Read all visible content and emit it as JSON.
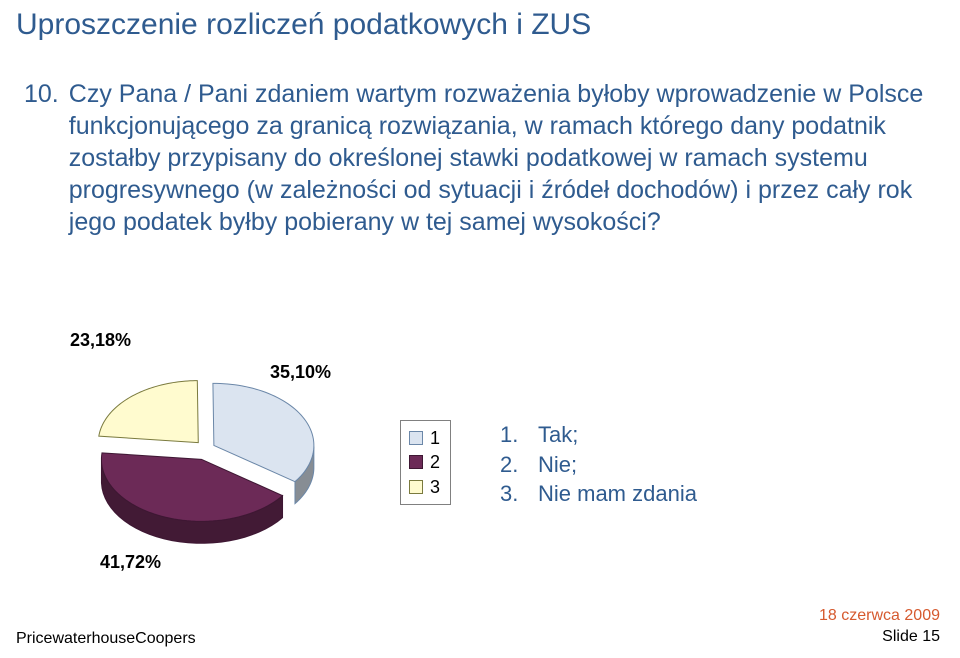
{
  "title": {
    "text": "Uproszczenie rozliczeń podatkowych i ZUS",
    "color": "#2f5b8f",
    "fontsize": 30
  },
  "question": {
    "number": "10.",
    "text": "Czy Pana / Pani zdaniem wartym rozważenia byłoby wprowadzenie w Polsce funkcjonującego za granicą rozwiązania, w ramach którego dany podatnik zostałby przypisany do określonej stawki podatkowej w ramach systemu progresywnego (w zależności od sytuacji i źródeł dochodów) i przez cały rok jego podatek byłby pobierany w tej samej wysokości?",
    "color": "#2f5b8f",
    "fontsize": 25
  },
  "chart": {
    "type": "pie-3d",
    "background_color": "#ffffff",
    "slices": [
      {
        "label": "23,18%",
        "value": 23.18,
        "color": "#fffbcf",
        "border": "#7a7a3e"
      },
      {
        "label": "35,10%",
        "value": 35.1,
        "color": "#dbe4f0",
        "border": "#6b87a8"
      },
      {
        "label": "41,72%",
        "value": 41.72,
        "color": "#6c2a57",
        "border": "#3e1733"
      }
    ],
    "label_fontsize": 18,
    "label_fontweight": "700",
    "label_color": "#000000"
  },
  "legend": {
    "items": [
      {
        "idx": "1",
        "color": "#dbe4f0",
        "border": "#6b87a8"
      },
      {
        "idx": "2",
        "color": "#6c2a57",
        "border": "#3e1733"
      },
      {
        "idx": "3",
        "color": "#fffbcf",
        "border": "#7a7a3e"
      }
    ],
    "fontsize": 18
  },
  "answers": {
    "color": "#2f5b8f",
    "fontsize": 22,
    "items": [
      {
        "idx": "1.",
        "text": "Tak;"
      },
      {
        "idx": "2.",
        "text": "Nie;"
      },
      {
        "idx": "3.",
        "text": "Nie mam zdania"
      }
    ]
  },
  "footer": {
    "left": "PricewaterhouseCoopers",
    "date": "18 czerwca 2009",
    "slide": "Slide 15",
    "date_color": "#d65a2f"
  }
}
